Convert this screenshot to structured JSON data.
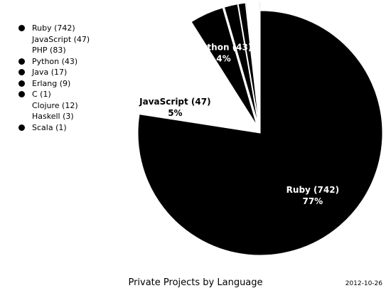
{
  "chart_data": {
    "type": "pie",
    "title": "Private Projects by Language",
    "date": "2012-10-26",
    "legend_position": "top-left",
    "categories": [
      "Ruby (742)",
      "JavaScript (47)",
      "PHP (83)",
      "Python (43)",
      "Java (17)",
      "Erlang (9)",
      "C (1)",
      "Clojure (12)",
      "Haskell (3)",
      "Scala (1)"
    ],
    "values": [
      742,
      47,
      83,
      43,
      17,
      9,
      1,
      12,
      3,
      1
    ],
    "percent_labels": [
      "77%",
      "5%",
      "",
      "4%",
      "",
      "",
      "",
      "",
      "",
      ""
    ],
    "slice_labels": [
      "Ruby (742)",
      "JavaScript (47)",
      "",
      "Python (43)",
      "",
      "",
      "",
      "",
      "",
      ""
    ],
    "colors": [
      "#000000",
      "#ffffff",
      "#ffffff",
      "#000000",
      "#000000",
      "#000000",
      "#000000",
      "#ffffff",
      "#ffffff",
      "#000000"
    ],
    "label_colors": [
      "#ffffff",
      "#000000",
      "#000000",
      "#ffffff",
      "#ffffff",
      "#ffffff",
      "#ffffff",
      "#000000",
      "#000000",
      "#ffffff"
    ],
    "exploded": [
      false,
      true,
      true,
      true,
      true,
      true,
      true,
      true,
      true,
      true
    ],
    "start_angle_degrees": 0,
    "direction": "clockwise"
  }
}
